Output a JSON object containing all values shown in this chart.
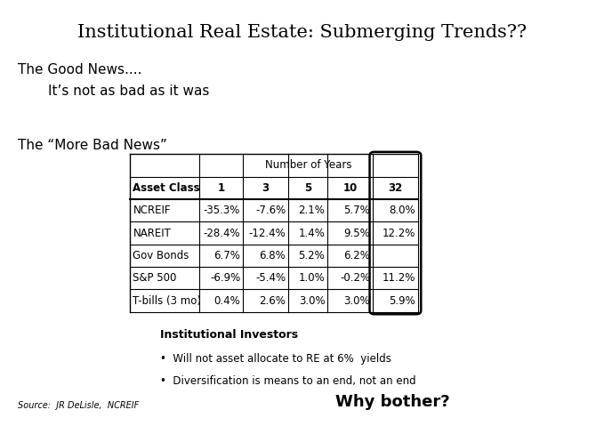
{
  "title": "Institutional Real Estate: Submerging Trends??",
  "good_news_line1": "The Good News....",
  "good_news_line2": "It’s not as bad as it was",
  "bad_news_header": "The “More Bad News”",
  "table_header_top": "Number of Years",
  "col_headers": [
    "Asset Class",
    "1",
    "3",
    "5",
    "10",
    "32"
  ],
  "rows": [
    [
      "NCREIF",
      "-35.3%",
      "-7.6%",
      "2.1%",
      "5.7%",
      "8.0%"
    ],
    [
      "NAREIT",
      "-28.4%",
      "-12.4%",
      "1.4%",
      "9.5%",
      "12.2%"
    ],
    [
      "Gov Bonds",
      "6.7%",
      "6.8%",
      "5.2%",
      "6.2%",
      ""
    ],
    [
      "S&P 500",
      "-6.9%",
      "-5.4%",
      "1.0%",
      "-0.2%",
      "11.2%"
    ],
    [
      "T-bills (3 mo)",
      "0.4%",
      "2.6%",
      "3.0%",
      "3.0%",
      "5.9%"
    ]
  ],
  "bullet_header": "Institutional Investors",
  "bullets": [
    "Will not asset allocate to RE at 6%  yields",
    "Diversification is means to an end, not an end"
  ],
  "source": "Source:  JR DeLisle,  NCREIF",
  "why_bother": "Why bother?",
  "bg_color": "#ffffff",
  "text_color": "#000000",
  "title_fontsize": 15,
  "body_fontsize": 11,
  "table_fontsize": 8.5,
  "bullet_fontsize": 8.5,
  "source_fontsize": 7,
  "why_fontsize": 13
}
